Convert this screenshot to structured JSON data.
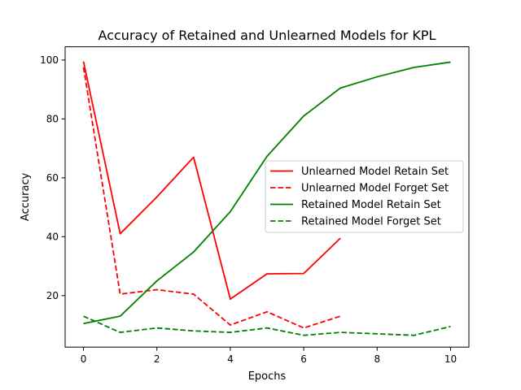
{
  "chart_data": {
    "type": "line",
    "title": "Accuracy of Retained and Unlearned Models for KPL",
    "xlabel": "Epochs",
    "ylabel": "Accuracy",
    "xlim": [
      -0.5,
      10.5
    ],
    "ylim": [
      2.5,
      104.5
    ],
    "xticks": [
      0,
      2,
      4,
      6,
      8,
      10
    ],
    "yticks": [
      20,
      40,
      60,
      80,
      100
    ],
    "grid": false,
    "legend_position": "center-right",
    "series": [
      {
        "name": "Unlearned Model Retain Set",
        "color": "#ff0000",
        "style": "solid",
        "x": [
          0,
          1,
          2,
          3,
          4,
          5,
          6,
          7
        ],
        "y": [
          99.5,
          41,
          53.5,
          67,
          18.8,
          27.4,
          27.5,
          39.5
        ]
      },
      {
        "name": "Unlearned Model Forget Set",
        "color": "#ff0000",
        "style": "dashed",
        "x": [
          0,
          1,
          2,
          3,
          4,
          5,
          6,
          7
        ],
        "y": [
          97.5,
          20.5,
          22,
          20.5,
          10,
          14.5,
          9,
          13
        ]
      },
      {
        "name": "Retained Model Retain Set",
        "color": "#008000",
        "style": "solid",
        "x": [
          0,
          1,
          2,
          3,
          4,
          5,
          6,
          7,
          8,
          9,
          10
        ],
        "y": [
          10.5,
          13,
          25,
          34.8,
          48.5,
          67.3,
          81,
          90.5,
          94.3,
          97.5,
          99.3
        ]
      },
      {
        "name": "Retained Model Forget Set",
        "color": "#008000",
        "style": "dashed",
        "x": [
          0,
          1,
          2,
          3,
          4,
          5,
          6,
          7,
          8,
          9,
          10
        ],
        "y": [
          13,
          7.5,
          9,
          8,
          7.5,
          9,
          6.5,
          7.5,
          7,
          6.5,
          9.5
        ]
      }
    ]
  }
}
